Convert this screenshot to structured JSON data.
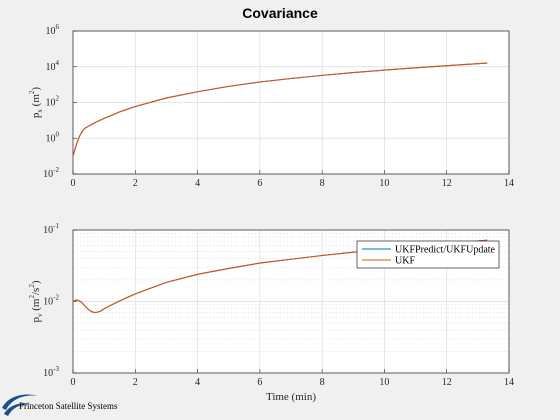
{
  "figure": {
    "title": "Covariance",
    "background": "#f0f0f0",
    "logo_text": "Princeton Satellite Systems"
  },
  "colors": {
    "ukf_predict": "#0072bd",
    "ukf": "#d95319",
    "grid": "#dcdcdc",
    "axis": "#262626",
    "logo": "#1f4e8c"
  },
  "chart_data": [
    {
      "type": "line",
      "title": "Covariance",
      "ylabel": {
        "base": "p",
        "sub": "x",
        "unit_pre": "(m",
        "unit_sup": "2",
        "unit_post": ")"
      },
      "xlabel": "",
      "xlim": [
        0,
        14
      ],
      "ylim": [
        0.01,
        1000000
      ],
      "yscale": "log",
      "grid": true,
      "minor_grid": false,
      "xticks": [
        "0",
        "2",
        "4",
        "6",
        "8",
        "10",
        "12",
        "14"
      ],
      "yticks": [
        {
          "base": "10",
          "exp": "-2"
        },
        {
          "base": "10",
          "exp": "0"
        },
        {
          "base": "10",
          "exp": "2"
        },
        {
          "base": "10",
          "exp": "4"
        },
        {
          "base": "10",
          "exp": "6"
        }
      ],
      "series": [
        {
          "name": "UKFPredict/UKFUpdate",
          "x": [
            0,
            0.05,
            0.1,
            0.2,
            0.3,
            0.4,
            0.6,
            0.8,
            1.0,
            1.5,
            2.0,
            3.0,
            4.0,
            5.0,
            6.0,
            7.0,
            8.0,
            9.0,
            10.0,
            11.0,
            12.0,
            13.3
          ],
          "y": [
            0.1,
            0.2,
            0.4,
            1.2,
            2.5,
            3.8,
            6,
            9,
            13,
            30,
            60,
            180,
            400,
            800,
            1400,
            2200,
            3300,
            4700,
            6500,
            8700,
            11500,
            16000
          ]
        },
        {
          "name": "UKF",
          "x": [
            0,
            0.05,
            0.1,
            0.2,
            0.3,
            0.4,
            0.6,
            0.8,
            1.0,
            1.5,
            2.0,
            3.0,
            4.0,
            5.0,
            6.0,
            7.0,
            8.0,
            9.0,
            10.0,
            11.0,
            12.0,
            13.3
          ],
          "y": [
            0.1,
            0.2,
            0.4,
            1.2,
            2.5,
            3.8,
            6,
            9,
            13,
            30,
            60,
            180,
            400,
            800,
            1400,
            2200,
            3300,
            4700,
            6500,
            8700,
            11500,
            16000
          ]
        }
      ]
    },
    {
      "type": "line",
      "title": "",
      "ylabel": {
        "base": "p",
        "sub": "v",
        "unit_pre": "(m",
        "unit_sup": "2",
        "unit_mid": "/s",
        "unit_sup2": "2",
        "unit_post": ")"
      },
      "xlabel": "Time (min)",
      "xlim": [
        0,
        14
      ],
      "ylim": [
        0.001,
        0.1
      ],
      "yscale": "log",
      "grid": true,
      "minor_grid": true,
      "legend_position": "top-right",
      "xticks": [
        "0",
        "2",
        "4",
        "6",
        "8",
        "10",
        "12",
        "14"
      ],
      "yticks": [
        {
          "base": "10",
          "exp": "-3"
        },
        {
          "base": "10",
          "exp": "-2"
        },
        {
          "base": "10",
          "exp": "-1"
        }
      ],
      "series": [
        {
          "name": "UKFPredict/UKFUpdate",
          "x": [
            0,
            0.1,
            0.2,
            0.3,
            0.4,
            0.5,
            0.6,
            0.7,
            0.8,
            0.9,
            1.0,
            1.2,
            1.5,
            2.0,
            3.0,
            4.0,
            5.0,
            6.0,
            7.0,
            8.0,
            9.0,
            10.0,
            11.0,
            12.0,
            13.3
          ],
          "y": [
            0.01,
            0.0105,
            0.0103,
            0.0095,
            0.0085,
            0.0077,
            0.0072,
            0.007,
            0.0071,
            0.0074,
            0.0079,
            0.0088,
            0.0102,
            0.0128,
            0.0185,
            0.024,
            0.029,
            0.0345,
            0.039,
            0.044,
            0.049,
            0.054,
            0.059,
            0.064,
            0.072
          ]
        },
        {
          "name": "UKF",
          "x": [
            0,
            0.1,
            0.2,
            0.3,
            0.4,
            0.5,
            0.6,
            0.7,
            0.8,
            0.9,
            1.0,
            1.2,
            1.5,
            2.0,
            3.0,
            4.0,
            5.0,
            6.0,
            7.0,
            8.0,
            9.0,
            10.0,
            11.0,
            12.0,
            13.3
          ],
          "y": [
            0.01,
            0.0105,
            0.0103,
            0.0095,
            0.0085,
            0.0077,
            0.0072,
            0.007,
            0.0071,
            0.0074,
            0.0079,
            0.0088,
            0.0102,
            0.0128,
            0.0185,
            0.024,
            0.029,
            0.0345,
            0.039,
            0.044,
            0.049,
            0.054,
            0.059,
            0.064,
            0.072
          ]
        }
      ]
    }
  ]
}
